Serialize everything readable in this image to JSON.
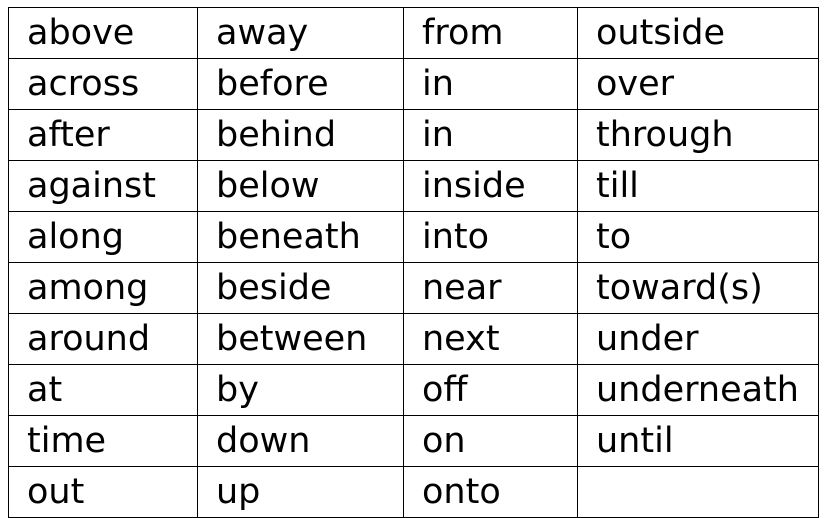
{
  "table": {
    "rows": [
      [
        "above",
        "away",
        "from",
        "outside"
      ],
      [
        "across",
        "before",
        "in",
        "over"
      ],
      [
        "after",
        "behind",
        "in",
        "through"
      ],
      [
        "against",
        "below",
        "inside",
        "till"
      ],
      [
        "along",
        "beneath",
        "into",
        "to"
      ],
      [
        "among",
        "beside",
        "near",
        "toward(s)"
      ],
      [
        "around",
        "between",
        "next",
        "under"
      ],
      [
        "at",
        "by",
        "off",
        "underneath"
      ],
      [
        "time",
        "down",
        "on",
        "until"
      ],
      [
        "out",
        "up",
        "onto",
        ""
      ]
    ]
  }
}
